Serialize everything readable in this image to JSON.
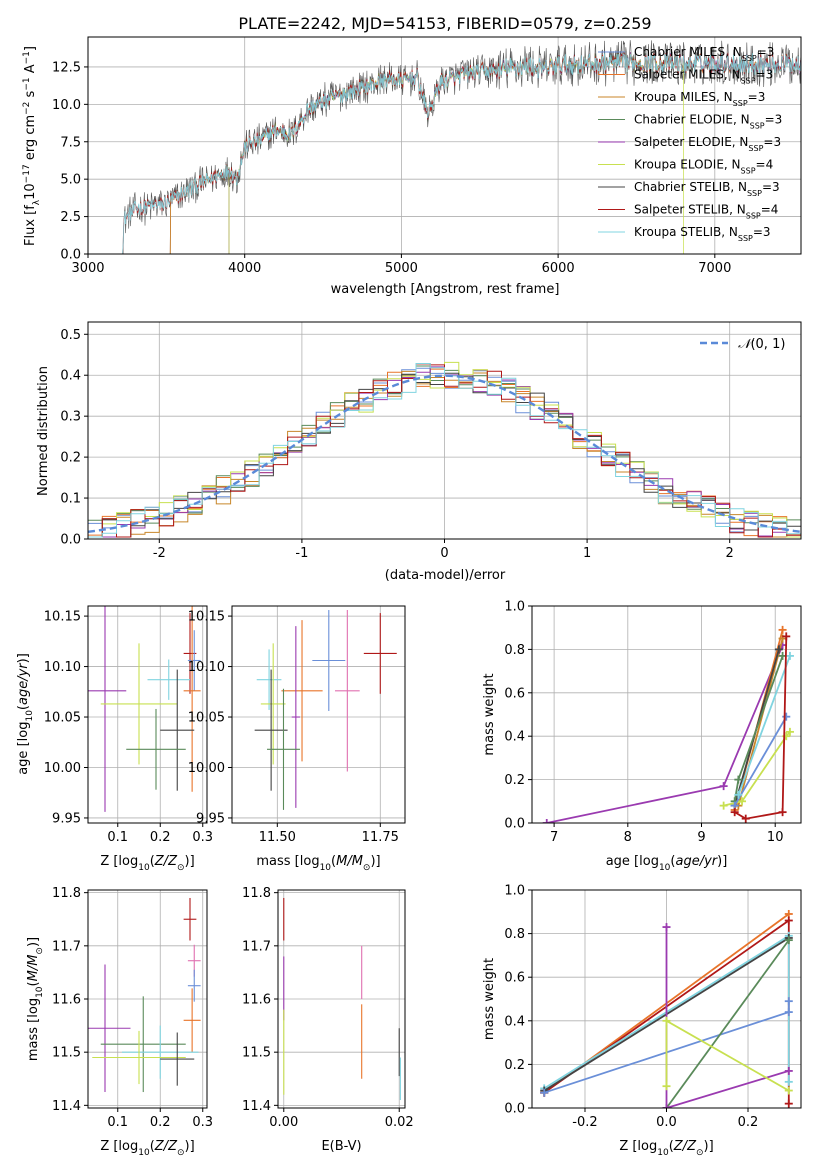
{
  "figure": {
    "title": "PLATE=2242, MJD=54153, FIBERID=0579, z=0.259"
  },
  "colors": {
    "Chabrier MILES": "#6a8fd8",
    "Salpeter MILES": "#e8742a",
    "Kroupa MILES": "#c8862a",
    "Chabrier ELODIE": "#5a8a5a",
    "Salpeter ELODIE": "#9a3ab0",
    "Kroupa ELODIE": "#c8e050",
    "Chabrier STELIB": "#444444",
    "Salpeter STELIB": "#b01818",
    "Kroupa STELIB": "#80d4e0",
    "pink": "#e070b0",
    "gaussian": "#5a8ad8"
  },
  "chart_data": [
    {
      "id": "spectrum",
      "type": "line",
      "xlabel": "wavelength [Angstrom, rest frame]",
      "ylabel": "Flux [f_λ10^-17 erg cm^-2 s^-1 A^-1]",
      "xlim": [
        3000,
        7550
      ],
      "ylim": [
        0,
        14.5
      ],
      "xticks": [
        3000,
        4000,
        5000,
        6000,
        7000
      ],
      "yticks": [
        0.0,
        2.5,
        5.0,
        7.5,
        10.0,
        12.5
      ],
      "legend_position": "top-right",
      "legend": [
        {
          "base": "Chabrier MILES, N",
          "sub": "SSP",
          "tail": "=3"
        },
        {
          "base": "Salpeter MILES, N",
          "sub": "SSP",
          "tail": "=3"
        },
        {
          "base": "Kroupa MILES, N",
          "sub": "SSP",
          "tail": "=3"
        },
        {
          "base": "Chabrier ELODIE, N",
          "sub": "SSP",
          "tail": "=3"
        },
        {
          "base": "Salpeter ELODIE, N",
          "sub": "SSP",
          "tail": "=3"
        },
        {
          "base": "Kroupa ELODIE, N",
          "sub": "SSP",
          "tail": "=4"
        },
        {
          "base": "Chabrier STELIB, N",
          "sub": "SSP",
          "tail": "=3"
        },
        {
          "base": "Salpeter STELIB, N",
          "sub": "SSP",
          "tail": "=4"
        },
        {
          "base": "Kroupa STELIB, N",
          "sub": "SSP",
          "tail": "=3"
        }
      ],
      "continuum": [
        [
          3220,
          0
        ],
        [
          3230,
          2.3
        ],
        [
          3300,
          3.0
        ],
        [
          3400,
          3.2
        ],
        [
          3500,
          3.4
        ],
        [
          3600,
          4.0
        ],
        [
          3700,
          4.6
        ],
        [
          3800,
          5.1
        ],
        [
          3900,
          5.6
        ],
        [
          3950,
          5.0
        ],
        [
          4000,
          7.2
        ],
        [
          4100,
          7.6
        ],
        [
          4200,
          8.3
        ],
        [
          4300,
          8.0
        ],
        [
          4400,
          9.6
        ],
        [
          4500,
          10.2
        ],
        [
          4600,
          10.6
        ],
        [
          4700,
          11.0
        ],
        [
          4800,
          11.3
        ],
        [
          4900,
          11.7
        ],
        [
          5000,
          11.6
        ],
        [
          5100,
          11.8
        ],
        [
          5170,
          9.3
        ],
        [
          5250,
          11.5
        ],
        [
          5400,
          12.0
        ],
        [
          5500,
          12.2
        ],
        [
          5600,
          12.3
        ],
        [
          5700,
          12.4
        ],
        [
          5800,
          12.6
        ],
        [
          5900,
          12.3
        ],
        [
          6000,
          12.6
        ],
        [
          6200,
          12.7
        ],
        [
          6400,
          12.8
        ],
        [
          6600,
          12.8
        ],
        [
          6800,
          12.7
        ],
        [
          7000,
          12.8
        ],
        [
          7200,
          12.7
        ],
        [
          7550,
          12.7
        ]
      ],
      "starts": {
        "STELIB": 3220,
        "MILES": 3525,
        "ELODIE": 3900,
        "Kroupa ELODIE end": 6800
      }
    },
    {
      "id": "residuals",
      "type": "step",
      "xlabel": "(data-model)/error",
      "ylabel": "Normed distribution",
      "xlim": [
        -2.5,
        2.5
      ],
      "ylim": [
        0,
        0.53
      ],
      "xticks": [
        -2,
        -1,
        0,
        1,
        2
      ],
      "yticks": [
        0.0,
        0.1,
        0.2,
        0.3,
        0.4,
        0.5
      ],
      "legend": [
        "N(0,1)"
      ],
      "legend_position": "top-right",
      "bin_width": 0.1
    },
    {
      "id": "age_vs_Z",
      "type": "errorbar",
      "xlabel": "Z [log10(Z/Z⊙)]",
      "ylabel": "age  [log10(age/yr)]",
      "xlim": [
        0.03,
        0.31
      ],
      "ylim": [
        9.945,
        10.16
      ],
      "xticks": [
        0.1,
        0.2,
        0.3
      ],
      "yticks": [
        9.95,
        10.0,
        10.05,
        10.1,
        10.15
      ],
      "points": [
        {
          "s": "Salpeter STELIB",
          "x": 0.27,
          "xe": 0.015,
          "y": 10.113,
          "ye": 0.04
        },
        {
          "s": "Chabrier MILES",
          "x": 0.28,
          "xe": 0.015,
          "y": 10.106,
          "ye": 0.03
        },
        {
          "s": "Kroupa STELIB",
          "x": 0.22,
          "xe": 0.05,
          "y": 10.087,
          "ye": 0.02
        },
        {
          "s": "Salpeter ELODIE",
          "x": 0.07,
          "xe": 0.05,
          "y": 10.076,
          "ye": 0.12
        },
        {
          "s": "Salpeter MILES",
          "x": 0.275,
          "xe": 0.02,
          "y": 10.076,
          "ye": 0.1
        },
        {
          "s": "Kroupa ELODIE",
          "x": 0.15,
          "xe": 0.09,
          "y": 10.063,
          "ye": 0.06
        },
        {
          "s": "Chabrier STELIB",
          "x": 0.24,
          "xe": 0.04,
          "y": 10.037,
          "ye": 0.06
        },
        {
          "s": "Chabrier ELODIE",
          "x": 0.19,
          "xe": 0.07,
          "y": 10.018,
          "ye": 0.04
        }
      ]
    },
    {
      "id": "age_vs_mass",
      "type": "errorbar",
      "xlabel": "mass [log10(M/M⊙)]",
      "ylabel": "",
      "xlim": [
        11.39,
        11.81
      ],
      "ylim": [
        9.945,
        10.16
      ],
      "xticks": [
        11.5,
        11.75
      ],
      "yticks": [
        9.95,
        10.0,
        10.05,
        10.1,
        10.15
      ],
      "points": [
        {
          "s": "Salpeter STELIB",
          "x": 11.75,
          "xe": 0.04,
          "y": 10.113,
          "ye": 0.04
        },
        {
          "s": "Chabrier MILES",
          "x": 11.625,
          "xe": 0.04,
          "y": 10.106,
          "ye": 0.05
        },
        {
          "s": "Kroupa STELIB",
          "x": 11.48,
          "xe": 0.03,
          "y": 10.087,
          "ye": 0.03
        },
        {
          "s": "pink",
          "x": 11.67,
          "xe": 0.03,
          "y": 10.076,
          "ye": 0.08
        },
        {
          "s": "Salpeter MILES",
          "x": 11.56,
          "xe": 0.05,
          "y": 10.076,
          "ye": 0.07
        },
        {
          "s": "Kroupa ELODIE",
          "x": 11.49,
          "xe": 0.03,
          "y": 10.063,
          "ye": 0.06
        },
        {
          "s": "Salpeter ELODIE",
          "x": 11.545,
          "xe": 0.01,
          "y": 10.05,
          "ye": 0.09
        },
        {
          "s": "Chabrier STELIB",
          "x": 11.485,
          "xe": 0.04,
          "y": 10.037,
          "ye": 0.06
        },
        {
          "s": "Chabrier ELODIE",
          "x": 11.515,
          "xe": 0.04,
          "y": 10.018,
          "ye": 0.06
        }
      ]
    },
    {
      "id": "mass_weight_vs_age",
      "type": "line",
      "xlabel": "age  [log10(age/yr)]",
      "ylabel": "mass weight",
      "xlim": [
        6.7,
        10.35
      ],
      "ylim": [
        0,
        1.0
      ],
      "xticks": [
        7,
        8,
        9,
        10
      ],
      "yticks": [
        0.0,
        0.2,
        0.4,
        0.6,
        0.8,
        1.0
      ],
      "series": [
        {
          "s": "Salpeter ELODIE",
          "pts": [
            [
              6.9,
              0.0
            ],
            [
              9.3,
              0.17
            ],
            [
              10.1,
              0.82
            ]
          ]
        },
        {
          "s": "Salpeter MILES",
          "pts": [
            [
              9.45,
              0.06
            ],
            [
              10.1,
              0.89
            ]
          ]
        },
        {
          "s": "Kroupa MILES",
          "pts": [
            [
              9.5,
              0.08
            ],
            [
              10.1,
              0.85
            ]
          ]
        },
        {
          "s": "Chabrier STELIB",
          "pts": [
            [
              9.45,
              0.08
            ],
            [
              10.05,
              0.8
            ]
          ]
        },
        {
          "s": "Chabrier ELODIE",
          "pts": [
            [
              9.45,
              0.1
            ],
            [
              9.5,
              0.2
            ],
            [
              10.1,
              0.77
            ]
          ]
        },
        {
          "s": "Kroupa ELODIE",
          "pts": [
            [
              9.3,
              0.08
            ],
            [
              9.55,
              0.1
            ],
            [
              10.15,
              0.4
            ],
            [
              10.2,
              0.42
            ]
          ]
        },
        {
          "s": "Chabrier MILES",
          "pts": [
            [
              9.45,
              0.08
            ],
            [
              10.15,
              0.49
            ]
          ]
        },
        {
          "s": "Kroupa STELIB",
          "pts": [
            [
              9.5,
              0.13
            ],
            [
              10.2,
              0.77
            ]
          ]
        },
        {
          "s": "Salpeter STELIB",
          "pts": [
            [
              9.45,
              0.05
            ],
            [
              9.6,
              0.02
            ],
            [
              10.1,
              0.05
            ],
            [
              10.15,
              0.86
            ]
          ]
        }
      ]
    },
    {
      "id": "mass_vs_Z",
      "type": "errorbar",
      "xlabel": "Z [log10(Z/Z⊙)]",
      "ylabel": "mass [log10(M/M⊙)]",
      "xlim": [
        0.03,
        0.31
      ],
      "ylim": [
        11.395,
        11.805
      ],
      "xticks": [
        0.1,
        0.2,
        0.3
      ],
      "yticks": [
        11.4,
        11.5,
        11.6,
        11.7,
        11.8
      ],
      "points": [
        {
          "s": "Salpeter STELIB",
          "x": 0.27,
          "xe": 0.015,
          "y": 11.75,
          "ye": 0.04
        },
        {
          "s": "pink",
          "x": 0.28,
          "xe": 0.015,
          "y": 11.672,
          "ye": 0.03
        },
        {
          "s": "Chabrier MILES",
          "x": 0.28,
          "xe": 0.015,
          "y": 11.625,
          "ye": 0.03
        },
        {
          "s": "Salpeter MILES",
          "x": 0.275,
          "xe": 0.02,
          "y": 11.56,
          "ye": 0.06
        },
        {
          "s": "Salpeter ELODIE",
          "x": 0.07,
          "xe": 0.06,
          "y": 11.545,
          "ye": 0.12
        },
        {
          "s": "Chabrier ELODIE",
          "x": 0.16,
          "xe": 0.1,
          "y": 11.515,
          "ye": 0.09
        },
        {
          "s": "Kroupa STELIB",
          "x": 0.2,
          "xe": 0.09,
          "y": 11.5,
          "ye": 0.05
        },
        {
          "s": "Kroupa ELODIE",
          "x": 0.15,
          "xe": 0.11,
          "y": 11.49,
          "ye": 0.05
        },
        {
          "s": "Chabrier STELIB",
          "x": 0.24,
          "xe": 0.04,
          "y": 11.487,
          "ye": 0.05
        }
      ]
    },
    {
      "id": "mass_vs_ebv",
      "type": "errorbar",
      "xlabel": "E(B-V)",
      "ylabel": "",
      "xlim": [
        -0.001,
        0.021
      ],
      "ylim": [
        11.395,
        11.805
      ],
      "xticks": [
        0.0,
        0.02
      ],
      "yticks": [
        11.4,
        11.5,
        11.6,
        11.7,
        11.8
      ],
      "points": [
        {
          "s": "Salpeter STELIB",
          "x": 0.0,
          "xe": 0,
          "y": 11.75,
          "ye": 0.04
        },
        {
          "s": "Salpeter ELODIE",
          "x": 0.0,
          "xe": 0,
          "y": 11.62,
          "ye": 0.06
        },
        {
          "s": "Kroupa ELODIE",
          "x": 0.0,
          "xe": 0,
          "y": 11.5,
          "ye": 0.08
        },
        {
          "s": "pink",
          "x": 0.0135,
          "xe": 0,
          "y": 11.65,
          "ye": 0.05
        },
        {
          "s": "Salpeter MILES",
          "x": 0.0135,
          "xe": 0,
          "y": 11.52,
          "ye": 0.07
        },
        {
          "s": "Chabrier STELIB",
          "x": 0.02,
          "xe": 0,
          "y": 11.5,
          "ye": 0.045
        },
        {
          "s": "Kroupa STELIB",
          "x": 0.0202,
          "xe": 0,
          "y": 11.45,
          "ye": 0.04
        }
      ]
    },
    {
      "id": "mass_weight_vs_Z",
      "type": "line",
      "xlabel": "Z [log10(Z/Z⊙)]",
      "ylabel": "mass weight",
      "xlim": [
        -0.33,
        0.33
      ],
      "ylim": [
        0,
        1.0
      ],
      "xticks": [
        -0.2,
        0.0,
        0.2
      ],
      "yticks": [
        0.0,
        0.2,
        0.4,
        0.6,
        0.8,
        1.0
      ],
      "series": [
        {
          "s": "Salpeter MILES",
          "pts": [
            [
              -0.3,
              0.07
            ],
            [
              0.3,
              0.89
            ]
          ]
        },
        {
          "s": "Salpeter STELIB",
          "pts": [
            [
              -0.3,
              0.07
            ],
            [
              0.3,
              0.86
            ],
            [
              0.3,
              0.02
            ]
          ]
        },
        {
          "s": "Kroupa STELIB",
          "pts": [
            [
              -0.3,
              0.09
            ],
            [
              0.3,
              0.79
            ],
            [
              0.3,
              0.12
            ]
          ]
        },
        {
          "s": "Chabrier STELIB",
          "pts": [
            [
              -0.3,
              0.08
            ],
            [
              0.3,
              0.78
            ]
          ]
        },
        {
          "s": "Chabrier MILES",
          "pts": [
            [
              -0.3,
              0.07
            ],
            [
              0.3,
              0.44
            ],
            [
              0.3,
              0.49
            ]
          ]
        },
        {
          "s": "Chabrier ELODIE",
          "pts": [
            [
              0.0,
              0.0
            ],
            [
              0.3,
              0.77
            ]
          ]
        },
        {
          "s": "Salpeter ELODIE",
          "pts": [
            [
              0.0,
              0.83
            ],
            [
              0.0,
              0.0
            ],
            [
              0.3,
              0.17
            ]
          ]
        },
        {
          "s": "Kroupa ELODIE",
          "pts": [
            [
              0.0,
              0.1
            ],
            [
              0.0,
              0.4
            ],
            [
              0.3,
              0.08
            ]
          ]
        }
      ]
    }
  ]
}
